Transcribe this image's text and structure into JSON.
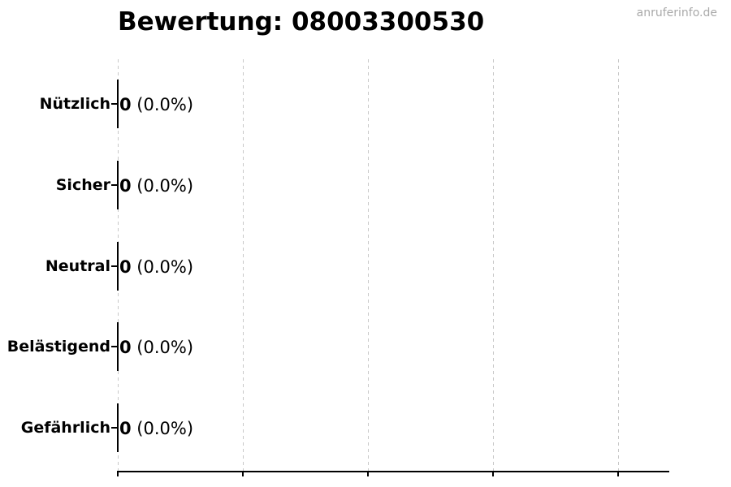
{
  "watermark": {
    "text": "anruferinfo.de"
  },
  "chart_data": {
    "type": "bar",
    "orientation": "horizontal",
    "title": "Bewertung: 08003300530",
    "categories": [
      "Nützlich",
      "Sicher",
      "Neutral",
      "Belästigend",
      "Gefährlich"
    ],
    "values": [
      0,
      0,
      0,
      0,
      0
    ],
    "percent_labels": [
      "0.0%",
      "0.0%",
      "0.0%",
      "0.0%",
      "0.0%"
    ],
    "annotation_format": "{value} ({percent})",
    "x_axis": {
      "tick_labels_visible": false,
      "tick_count": 5,
      "grid": "vertical-dashed"
    },
    "legend": null,
    "colors": {
      "text": "#000000",
      "axis": "#000000",
      "bar_edge": "#000000",
      "grid": "#c8c8c8",
      "watermark": "#a9a9a9",
      "background": "#ffffff"
    }
  }
}
